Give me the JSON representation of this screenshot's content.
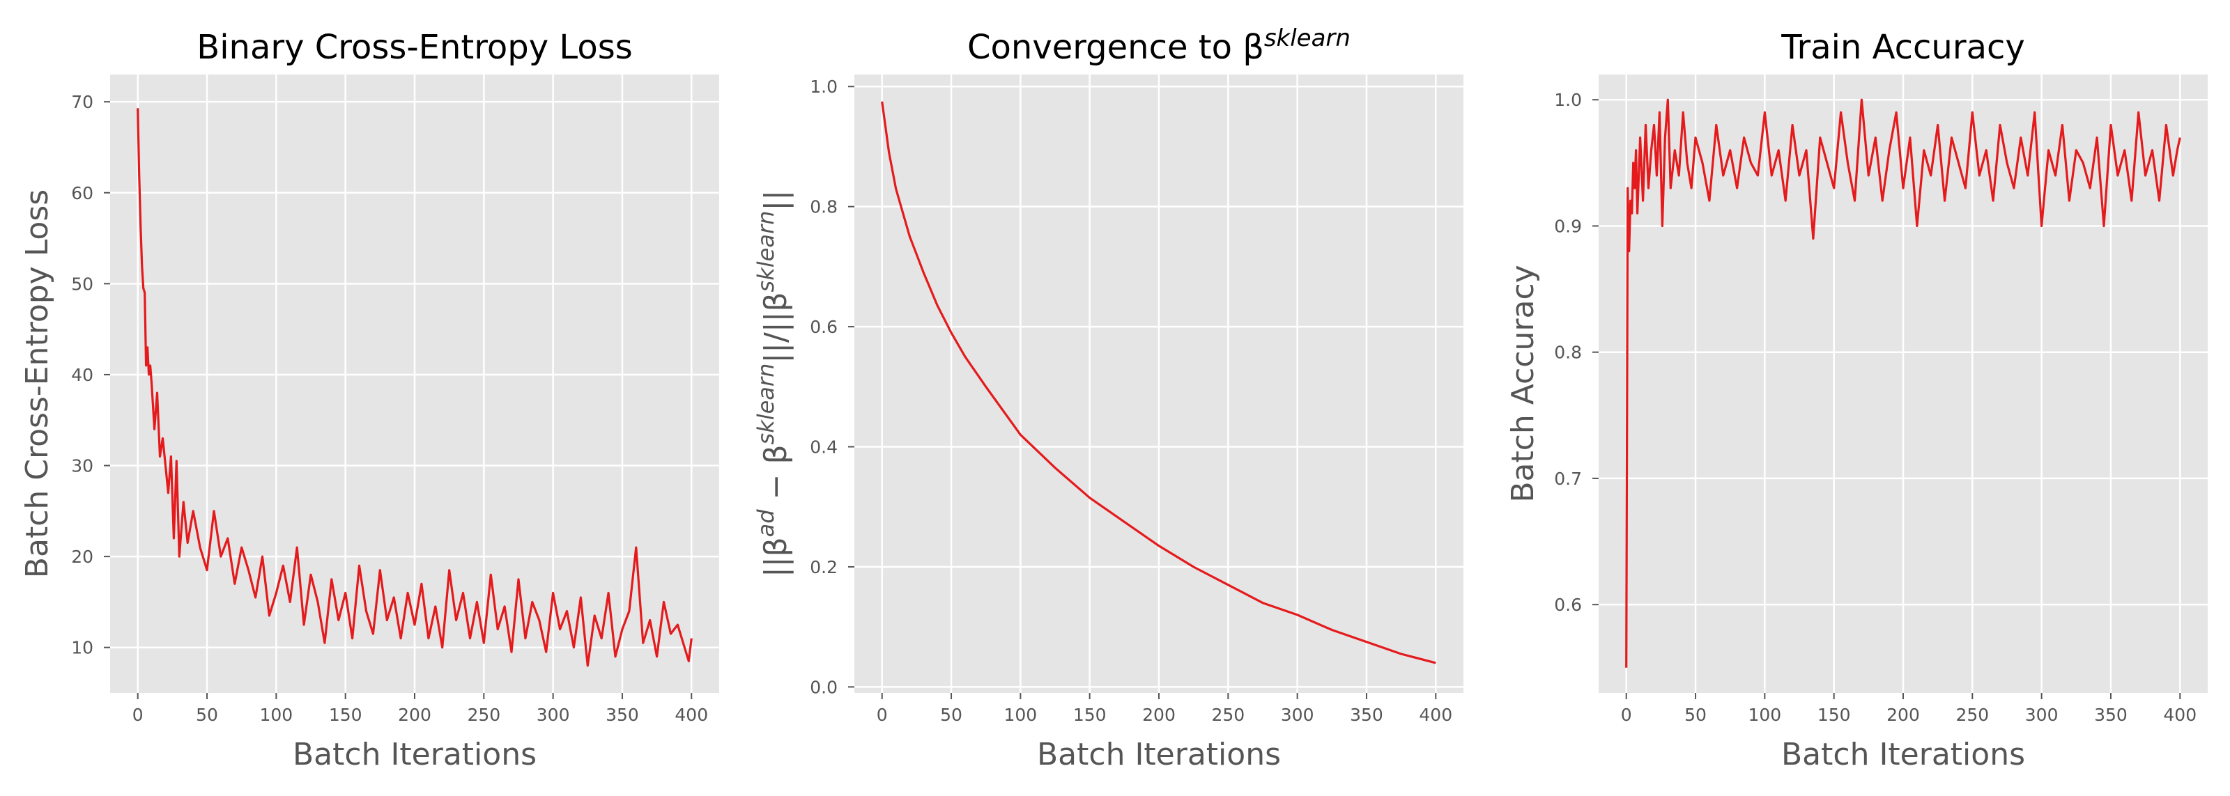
{
  "colors": {
    "series": "#e41a1c",
    "panel_bg": "#e5e5e5",
    "grid": "#ffffff",
    "text": "#555555"
  },
  "chart_data": [
    {
      "type": "line",
      "title": "Binary Cross-Entropy Loss",
      "xlabel": "Batch Iterations",
      "ylabel": "Batch Cross-Entropy Loss",
      "xlim": [
        -20,
        420
      ],
      "ylim": [
        5,
        73
      ],
      "xticks": [
        0,
        50,
        100,
        150,
        200,
        250,
        300,
        350,
        400
      ],
      "yticks": [
        10,
        20,
        30,
        40,
        50,
        60,
        70
      ],
      "grid": true,
      "series": [
        {
          "color": "#e41a1c",
          "x": [
            0,
            1,
            2,
            3,
            4,
            5,
            6,
            7,
            8,
            9,
            10,
            12,
            14,
            16,
            18,
            20,
            22,
            24,
            26,
            28,
            30,
            33,
            36,
            40,
            45,
            50,
            55,
            60,
            65,
            70,
            75,
            80,
            85,
            90,
            95,
            100,
            105,
            110,
            115,
            120,
            125,
            130,
            135,
            140,
            145,
            150,
            155,
            160,
            165,
            170,
            175,
            180,
            185,
            190,
            195,
            200,
            205,
            210,
            215,
            220,
            225,
            230,
            235,
            240,
            245,
            250,
            255,
            260,
            265,
            270,
            275,
            280,
            285,
            290,
            295,
            300,
            305,
            310,
            315,
            320,
            325,
            330,
            335,
            340,
            345,
            350,
            355,
            360,
            365,
            370,
            375,
            380,
            385,
            390,
            395,
            398,
            400
          ],
          "y": [
            69.3,
            62.0,
            56.5,
            52.0,
            49.5,
            49.0,
            41.0,
            43.0,
            40.0,
            41.0,
            39.0,
            34.0,
            38.0,
            31.0,
            33.0,
            30.0,
            27.0,
            31.0,
            22.0,
            30.5,
            20.0,
            26.0,
            21.5,
            25.0,
            21.0,
            18.5,
            25.0,
            20.0,
            22.0,
            17.0,
            21.0,
            18.5,
            15.5,
            20.0,
            13.5,
            16.0,
            19.0,
            15.0,
            21.0,
            12.5,
            18.0,
            15.0,
            10.5,
            17.5,
            13.0,
            16.0,
            11.0,
            19.0,
            14.0,
            11.5,
            18.5,
            13.0,
            15.5,
            11.0,
            16.0,
            12.5,
            17.0,
            11.0,
            14.5,
            10.0,
            18.5,
            13.0,
            16.0,
            11.0,
            15.0,
            10.5,
            18.0,
            12.0,
            14.5,
            9.5,
            17.5,
            11.0,
            15.0,
            13.0,
            9.5,
            16.0,
            12.0,
            14.0,
            10.0,
            15.5,
            8.0,
            13.5,
            11.0,
            16.0,
            9.0,
            12.0,
            14.0,
            21.0,
            10.5,
            13.0,
            9.0,
            15.0,
            11.5,
            12.5,
            10.0,
            8.5,
            11.0
          ]
        }
      ]
    },
    {
      "type": "line",
      "title": "Convergence to β",
      "title_superscript": "sklearn",
      "xlabel": "Batch Iterations",
      "ylabel": "||βad − βsklearn||/||βsklearn||",
      "xlim": [
        -20,
        420
      ],
      "ylim": [
        -0.01,
        1.02
      ],
      "xticks": [
        0,
        50,
        100,
        150,
        200,
        250,
        300,
        350,
        400
      ],
      "yticks": [
        0.0,
        0.2,
        0.4,
        0.6,
        0.8,
        1.0
      ],
      "ytick_labels": [
        "0.0",
        "0.2",
        "0.4",
        "0.6",
        "0.8",
        "1.0"
      ],
      "grid": true,
      "series": [
        {
          "color": "#e41a1c",
          "x": [
            0,
            5,
            10,
            15,
            20,
            25,
            30,
            40,
            50,
            60,
            75,
            100,
            125,
            150,
            175,
            200,
            225,
            250,
            275,
            300,
            325,
            350,
            375,
            400
          ],
          "y": [
            0.975,
            0.89,
            0.83,
            0.79,
            0.75,
            0.72,
            0.69,
            0.635,
            0.59,
            0.55,
            0.5,
            0.42,
            0.365,
            0.315,
            0.275,
            0.235,
            0.2,
            0.17,
            0.14,
            0.12,
            0.095,
            0.075,
            0.055,
            0.04
          ]
        }
      ]
    },
    {
      "type": "line",
      "title": "Train Accuracy",
      "xlabel": "Batch Iterations",
      "ylabel": "Batch Accuracy",
      "xlim": [
        -20,
        420
      ],
      "ylim": [
        0.53,
        1.02
      ],
      "xticks": [
        0,
        50,
        100,
        150,
        200,
        250,
        300,
        350,
        400
      ],
      "yticks": [
        0.6,
        0.7,
        0.8,
        0.9,
        1.0
      ],
      "ytick_labels": [
        "0.6",
        "0.7",
        "0.8",
        "0.9",
        "1.0"
      ],
      "grid": true,
      "series": [
        {
          "color": "#e41a1c",
          "x": [
            0,
            1,
            2,
            3,
            4,
            5,
            6,
            7,
            8,
            10,
            12,
            14,
            16,
            18,
            20,
            22,
            24,
            26,
            28,
            30,
            32,
            35,
            38,
            41,
            44,
            47,
            50,
            55,
            60,
            65,
            70,
            75,
            80,
            85,
            90,
            95,
            100,
            105,
            110,
            115,
            120,
            125,
            130,
            135,
            140,
            145,
            150,
            155,
            160,
            165,
            170,
            175,
            180,
            185,
            190,
            195,
            200,
            205,
            210,
            215,
            220,
            225,
            230,
            235,
            240,
            245,
            250,
            255,
            260,
            265,
            270,
            275,
            280,
            285,
            290,
            295,
            300,
            305,
            310,
            315,
            320,
            325,
            330,
            335,
            340,
            345,
            350,
            355,
            360,
            365,
            370,
            375,
            380,
            385,
            390,
            395,
            398,
            400
          ],
          "y": [
            0.55,
            0.93,
            0.88,
            0.92,
            0.91,
            0.95,
            0.93,
            0.96,
            0.91,
            0.97,
            0.92,
            0.98,
            0.93,
            0.96,
            0.98,
            0.94,
            0.99,
            0.9,
            0.97,
            1.0,
            0.93,
            0.96,
            0.94,
            0.99,
            0.95,
            0.93,
            0.97,
            0.95,
            0.92,
            0.98,
            0.94,
            0.96,
            0.93,
            0.97,
            0.95,
            0.94,
            0.99,
            0.94,
            0.96,
            0.92,
            0.98,
            0.94,
            0.96,
            0.89,
            0.97,
            0.95,
            0.93,
            0.99,
            0.95,
            0.92,
            1.0,
            0.94,
            0.97,
            0.92,
            0.96,
            0.99,
            0.93,
            0.97,
            0.9,
            0.96,
            0.94,
            0.98,
            0.92,
            0.97,
            0.95,
            0.93,
            0.99,
            0.94,
            0.96,
            0.92,
            0.98,
            0.95,
            0.93,
            0.97,
            0.94,
            0.99,
            0.9,
            0.96,
            0.94,
            0.98,
            0.92,
            0.96,
            0.95,
            0.93,
            0.97,
            0.9,
            0.98,
            0.94,
            0.96,
            0.92,
            0.99,
            0.94,
            0.96,
            0.92,
            0.98,
            0.94,
            0.96,
            0.97
          ]
        }
      ]
    }
  ]
}
